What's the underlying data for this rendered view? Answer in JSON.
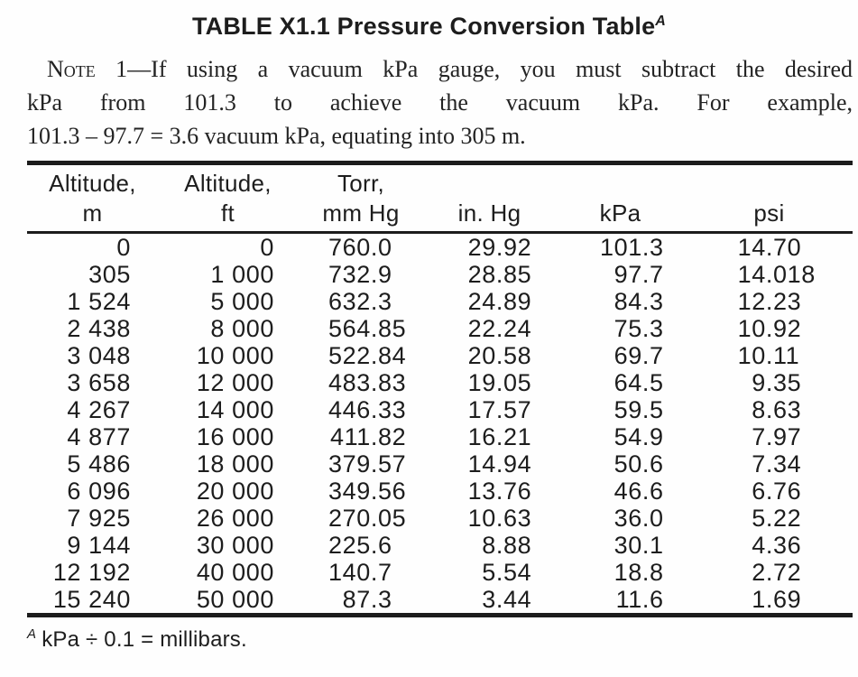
{
  "title": {
    "text": "TABLE X1.1 Pressure Conversion Table",
    "superscript": "A"
  },
  "note": {
    "label": "Note 1",
    "lines": [
      "—If using a vacuum kPa gauge, you must subtract the desired",
      "kPa from 101.3 to achieve the vacuum kPa. For example,",
      "101.3 – 97.7 = 3.6 vacuum kPa, equating into 305 m."
    ]
  },
  "table": {
    "columns": [
      {
        "key": "altitude-m",
        "line1": "Altitude,",
        "line2": "m"
      },
      {
        "key": "altitude-ft",
        "line1": "Altitude,",
        "line2": "ft"
      },
      {
        "key": "torr-mm-hg",
        "line1": "Torr,",
        "line2": "mm Hg"
      },
      {
        "key": "in-hg",
        "line1": "",
        "line2": "in. Hg"
      },
      {
        "key": "kpa",
        "line1": "",
        "line2": "kPa"
      },
      {
        "key": "psi",
        "line1": "",
        "line2": "psi"
      }
    ],
    "rows": [
      [
        "0",
        "0",
        "760.0",
        "29.92",
        "101.3",
        "14.70"
      ],
      [
        "305",
        "1 000",
        "732.9",
        "28.85",
        "97.7",
        "14.018"
      ],
      [
        "1 524",
        "5 000",
        "632.3",
        "24.89",
        "84.3",
        "12.23"
      ],
      [
        "2 438",
        "8 000",
        "564.85",
        "22.24",
        "75.3",
        "10.92"
      ],
      [
        "3 048",
        "10 000",
        "522.84",
        "20.58",
        "69.7",
        "10.11"
      ],
      [
        "3 658",
        "12 000",
        "483.83",
        "19.05",
        "64.5",
        "9.35"
      ],
      [
        "4 267",
        "14 000",
        "446.33",
        "17.57",
        "59.5",
        "8.63"
      ],
      [
        "4 877",
        "16 000",
        "411.82",
        "16.21",
        "54.9",
        "7.97"
      ],
      [
        "5 486",
        "18 000",
        "379.57",
        "14.94",
        "50.6",
        "7.34"
      ],
      [
        "6 096",
        "20 000",
        "349.56",
        "13.76",
        "46.6",
        "6.76"
      ],
      [
        "7 925",
        "26 000",
        "270.05",
        "10.63",
        "36.0",
        "5.22"
      ],
      [
        "9 144",
        "30 000",
        "225.6",
        "8.88",
        "30.1",
        "4.36"
      ],
      [
        "12 192",
        "40 000",
        "140.7",
        "5.54",
        "18.8",
        "2.72"
      ],
      [
        "15 240",
        "50 000",
        "87.3",
        "3.44",
        "11.6",
        "1.69"
      ]
    ]
  },
  "footnote": {
    "superscript": "A",
    "text": "kPa ÷ 0.1 = millibars."
  }
}
